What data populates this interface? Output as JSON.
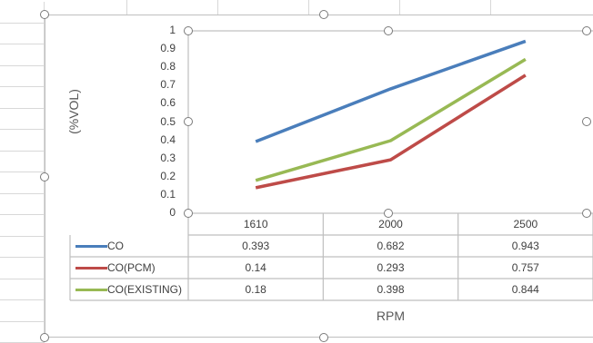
{
  "chart_data": {
    "type": "line",
    "categories": [
      "1610",
      "2000",
      "2500"
    ],
    "series": [
      {
        "name": "CO",
        "values": [
          0.393,
          0.682,
          0.943
        ],
        "color": "#4a7ebb",
        "display": [
          "0.393",
          "0.682",
          "0.943"
        ]
      },
      {
        "name": "CO(PCM)",
        "values": [
          0.14,
          0.293,
          0.757
        ],
        "color": "#be4b48",
        "display": [
          "0.14",
          "0.293",
          "0.757"
        ]
      },
      {
        "name": "CO(EXISTING)",
        "values": [
          0.18,
          0.398,
          0.844
        ],
        "color": "#98b954",
        "display": [
          "0.18",
          "0.398",
          "0.844"
        ]
      }
    ],
    "ylim": [
      0,
      1
    ],
    "yticks": [
      "0",
      "0.1",
      "0.2",
      "0.3",
      "0.4",
      "0.5",
      "0.6",
      "0.7",
      "0.8",
      "0.9",
      "1"
    ],
    "xlabel": "RPM",
    "ylabel": "(%VOL)",
    "data_table": true
  },
  "colors": {
    "axis": "#bfbfbf",
    "gridline": "#d8d8d8",
    "text": "#404040",
    "handle": "#7a7a7a"
  }
}
